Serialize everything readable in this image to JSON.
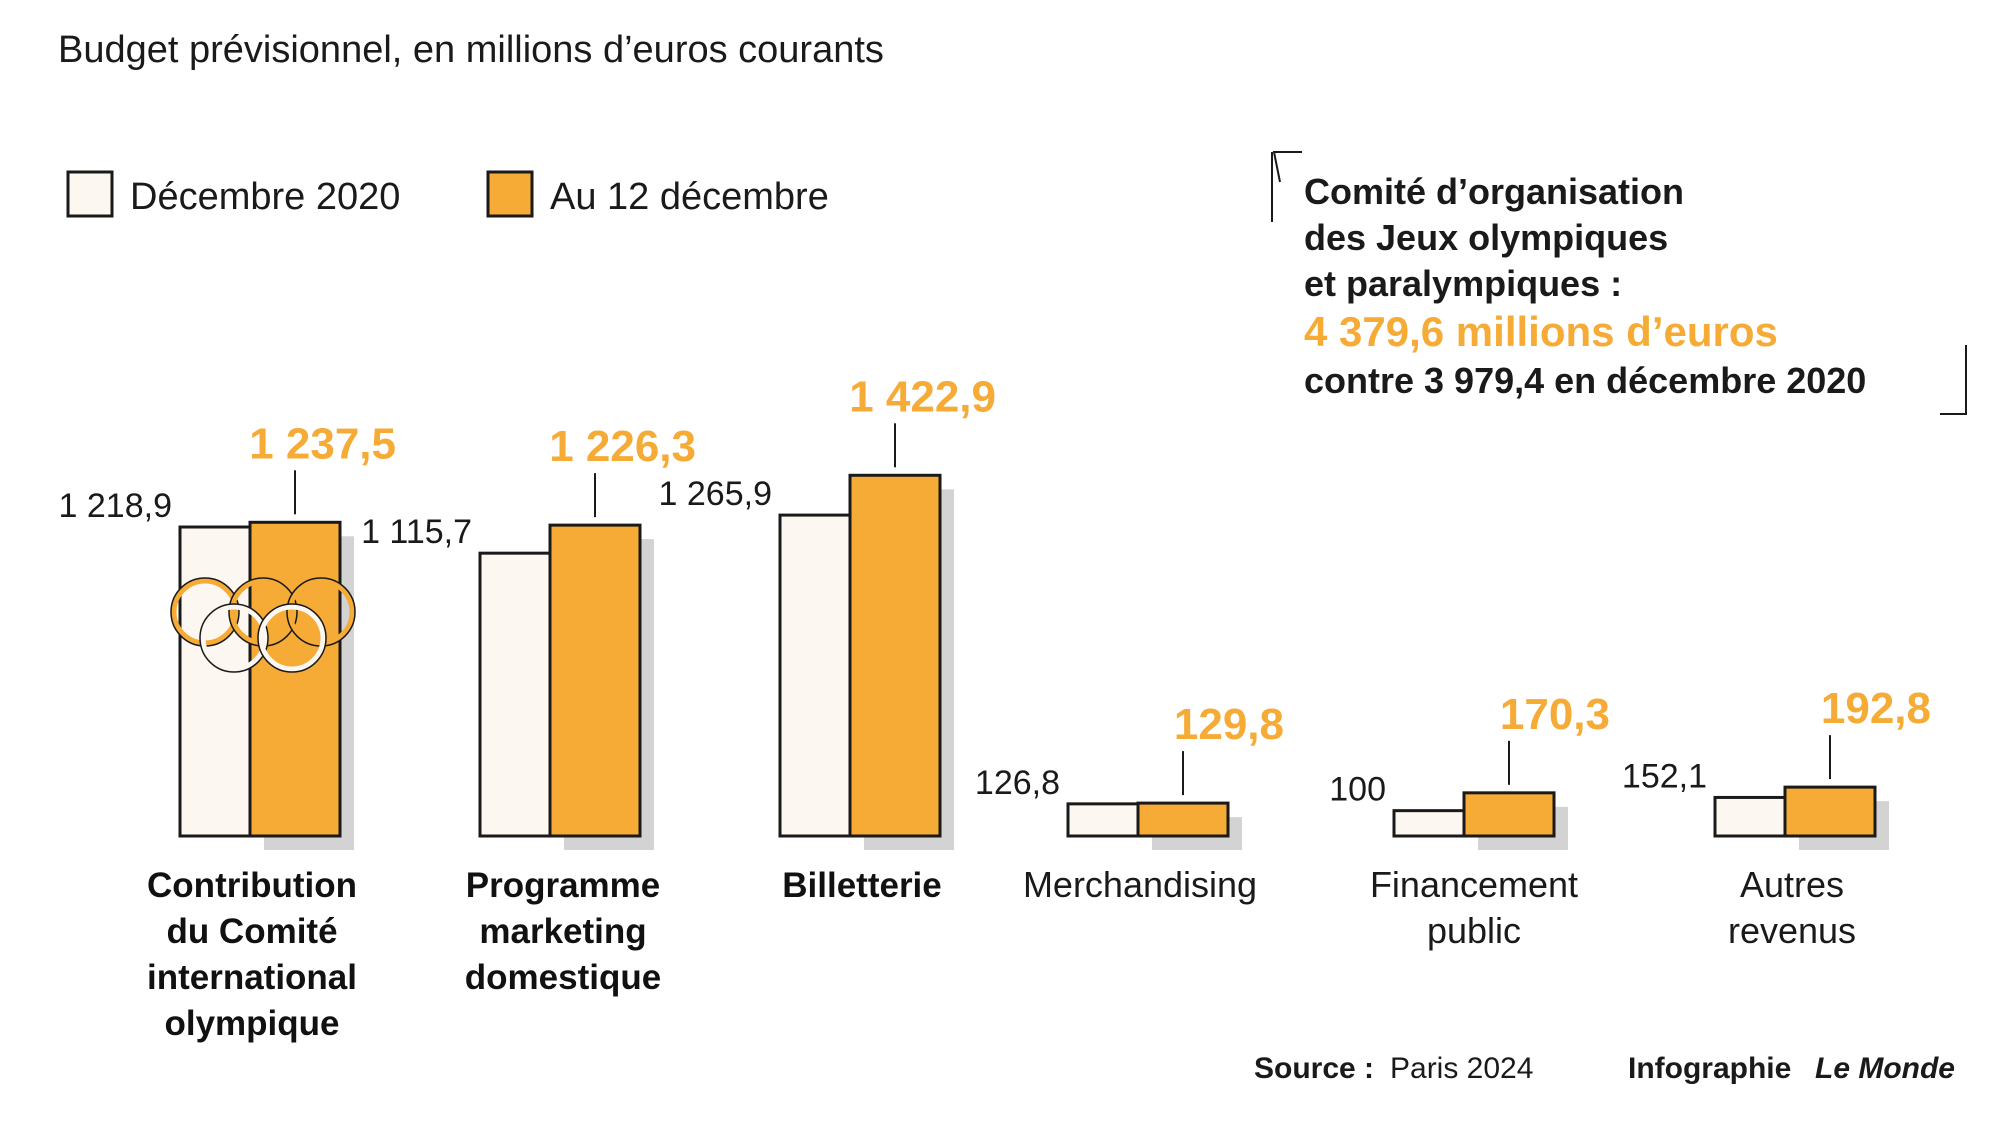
{
  "subtitle": "Budget prévisionnel, en millions d’euros courants",
  "colors": {
    "dec2020": "#fdf7f1",
    "dec12": "#f5ab35",
    "shadow": "#d3d3d3",
    "stroke": "#1a1a1a",
    "highlight": "#f5ab35"
  },
  "legend": [
    {
      "label": "Décembre 2020",
      "color": "#fdf7f1"
    },
    {
      "label": "Au 12 décembre",
      "color": "#f5ab35"
    }
  ],
  "chart_data": {
    "type": "bar",
    "title": "Budget prévisionnel, en millions d’euros courants",
    "categories": [
      "Contribution du Comité international olympique",
      "Programme marketing domestique",
      "Billetterie",
      "Merchandising",
      "Financement public",
      "Autres revenus"
    ],
    "series": [
      {
        "name": "Décembre 2020",
        "values": [
          1218.9,
          1115.7,
          1265.9,
          126.8,
          100,
          152.1
        ],
        "labels": [
          "1 218,9",
          "1 115,7",
          "1 265,9",
          "126,8",
          "100",
          "152,1"
        ]
      },
      {
        "name": "Au 12 décembre",
        "values": [
          1237.5,
          1226.3,
          1422.9,
          129.8,
          170.3,
          192.8
        ],
        "labels": [
          "1 237,5",
          "1 226,3",
          "1 422,9",
          "129,8",
          "170,3",
          "192,8"
        ]
      }
    ],
    "category_lines": [
      [
        "Contribution",
        "du Comité",
        "international",
        "olympique"
      ],
      [
        "Programme",
        "marketing",
        "domestique"
      ],
      [
        "Billetterie"
      ],
      [
        "Merchandising"
      ],
      [
        "Financement",
        "public"
      ],
      [
        "Autres",
        "revenus"
      ]
    ],
    "category_bold": [
      true,
      true,
      true,
      false,
      false,
      false
    ],
    "ylim": [
      0,
      1422.9
    ],
    "grid": false,
    "legend_position": "top-left"
  },
  "summary": {
    "lines": [
      "Comité d’organisation",
      "des Jeux olympiques",
      "et paralympiques :"
    ],
    "total": "4 379,6 millions d’euros",
    "comparison": "contre 3 979,4 en décembre 2020"
  },
  "source": {
    "label": "Source :",
    "value": "Paris 2024"
  },
  "credit": {
    "prefix": "Infographie",
    "brand": "Le Monde"
  }
}
